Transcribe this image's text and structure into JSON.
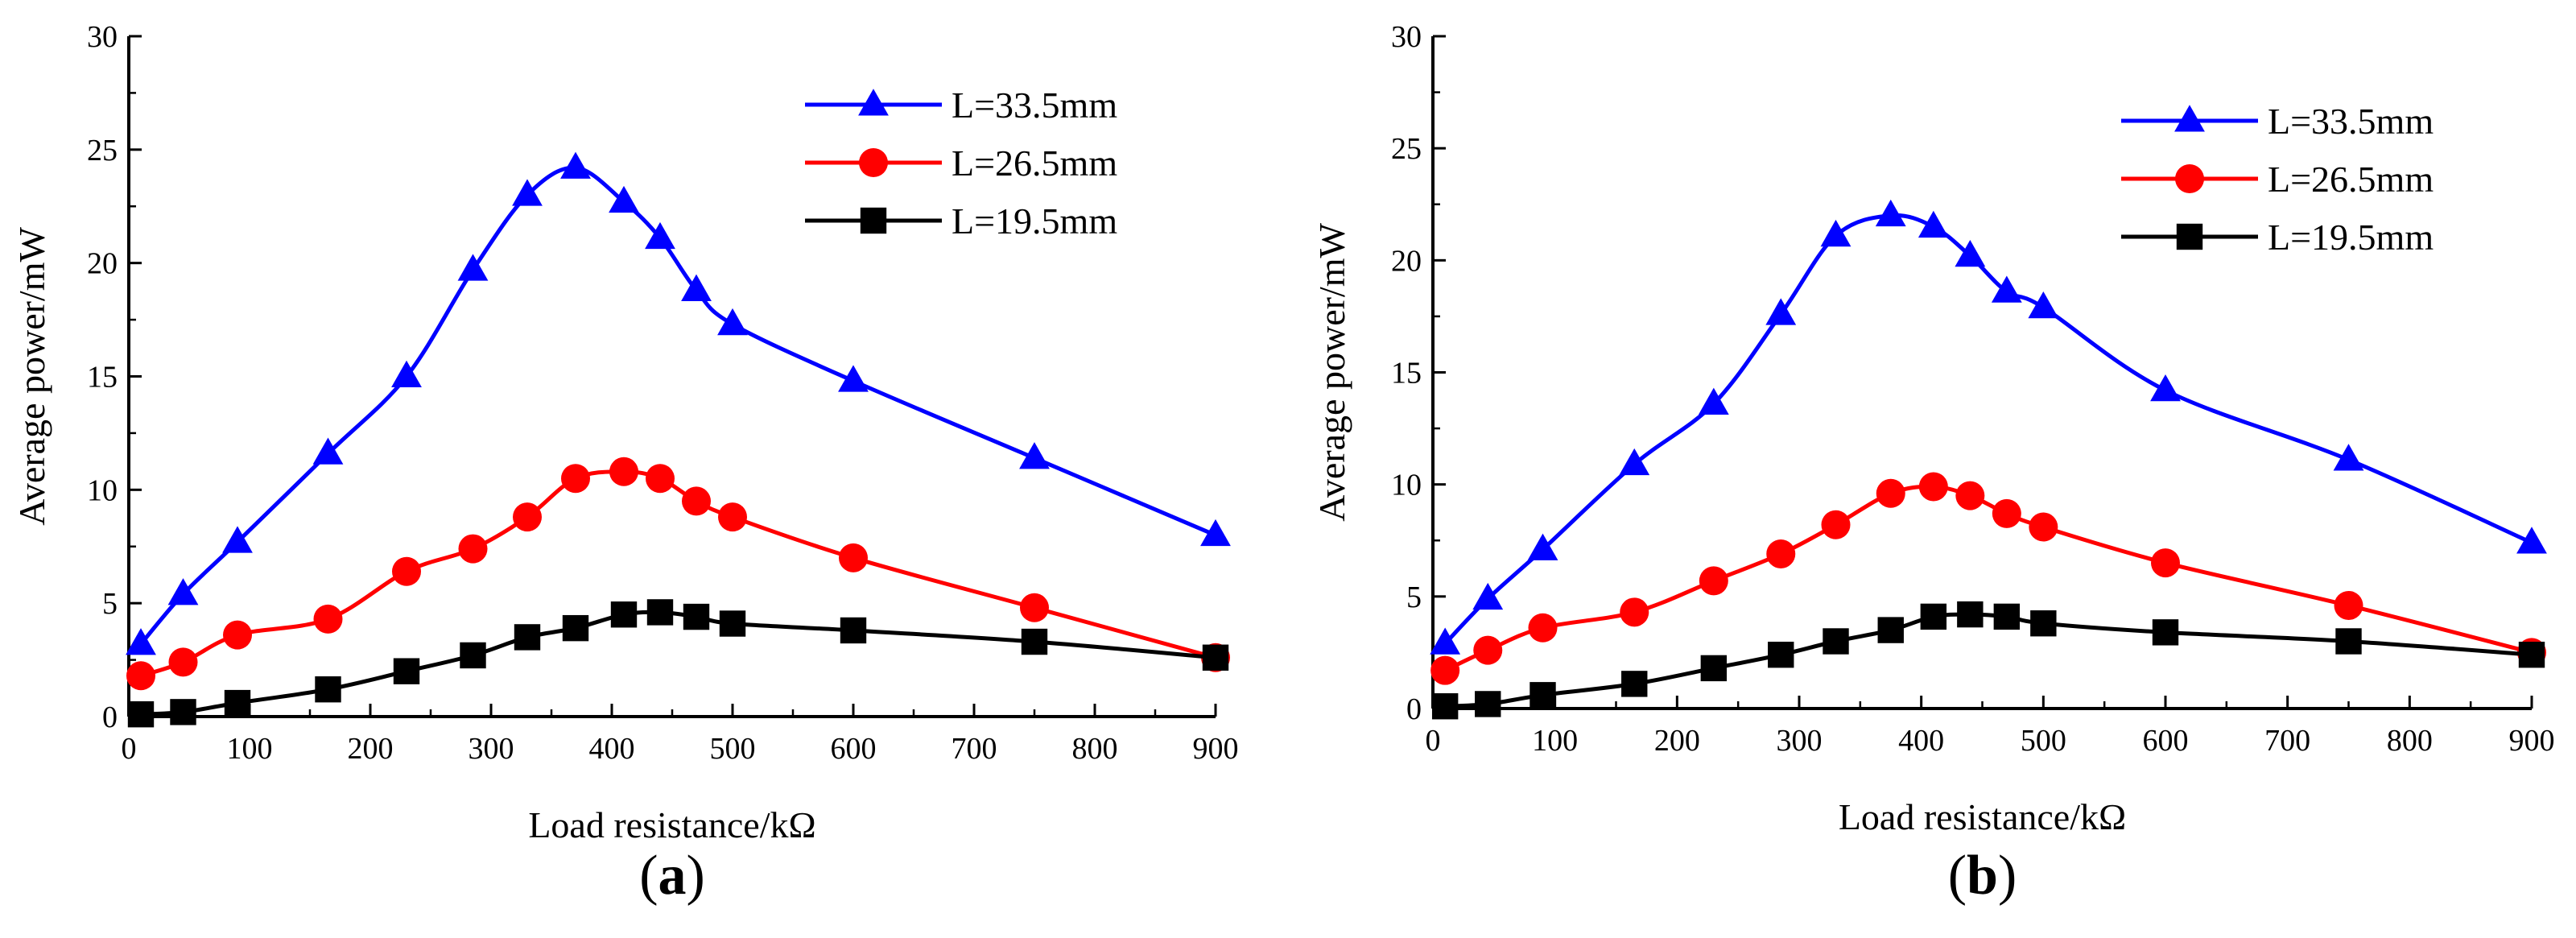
{
  "chart_data": [
    {
      "type": "line",
      "panel_label_open": "(",
      "panel_label_letter": "a",
      "panel_label_close": ")",
      "xlabel": "Load resistance/kΩ",
      "ylabel": "Average power/mW",
      "xlim": [
        0,
        900
      ],
      "ylim": [
        0,
        30
      ],
      "xticks": [
        "0",
        "100",
        "200",
        "300",
        "400",
        "500",
        "600",
        "700",
        "800",
        "900"
      ],
      "yticks": [
        "0",
        "5",
        "10",
        "15",
        "20",
        "25",
        "30"
      ],
      "x": [
        10,
        45,
        90,
        165,
        230,
        285,
        330,
        370,
        410,
        440,
        470,
        500,
        600,
        750,
        900
      ],
      "legend_position": "top-right",
      "series": [
        {
          "name": "L=33.5mm",
          "marker": "triangle",
          "color": "#0000ff",
          "values": [
            3.2,
            5.4,
            7.7,
            11.6,
            15.0,
            19.7,
            23.0,
            24.2,
            22.7,
            21.1,
            18.8,
            17.3,
            14.8,
            11.4,
            8.0
          ]
        },
        {
          "name": "L=26.5mm",
          "marker": "circle",
          "color": "#ff0000",
          "values": [
            1.8,
            2.4,
            3.6,
            4.3,
            6.4,
            7.4,
            8.8,
            10.5,
            10.8,
            10.5,
            9.5,
            8.8,
            7.0,
            4.8,
            2.6
          ]
        },
        {
          "name": "L=19.5mm",
          "marker": "square",
          "color": "#000000",
          "values": [
            0.1,
            0.2,
            0.6,
            1.2,
            2.0,
            2.7,
            3.5,
            3.9,
            4.5,
            4.6,
            4.4,
            4.1,
            3.8,
            3.3,
            2.6
          ]
        }
      ]
    },
    {
      "type": "line",
      "panel_label_open": "(",
      "panel_label_letter": "b",
      "panel_label_close": ")",
      "xlabel": "Load resistance/kΩ",
      "ylabel": "Average power/mW",
      "xlim": [
        0,
        900
      ],
      "ylim": [
        0,
        30
      ],
      "xticks": [
        "0",
        "100",
        "200",
        "300",
        "400",
        "500",
        "600",
        "700",
        "800",
        "900"
      ],
      "yticks": [
        "0",
        "5",
        "10",
        "15",
        "20",
        "25",
        "30"
      ],
      "x": [
        10,
        45,
        90,
        165,
        230,
        285,
        330,
        375,
        410,
        440,
        470,
        500,
        600,
        750,
        900
      ],
      "legend_position": "top-right",
      "series": [
        {
          "name": "L=33.5mm",
          "marker": "triangle",
          "color": "#0000ff",
          "values": [
            2.9,
            4.9,
            7.1,
            10.9,
            13.6,
            17.6,
            21.1,
            22.0,
            21.5,
            20.2,
            18.6,
            17.9,
            14.2,
            11.1,
            7.4
          ]
        },
        {
          "name": "L=26.5mm",
          "marker": "circle",
          "color": "#ff0000",
          "values": [
            1.7,
            2.6,
            3.6,
            4.3,
            5.7,
            6.9,
            8.2,
            9.6,
            9.9,
            9.5,
            8.7,
            8.1,
            6.5,
            4.6,
            2.5
          ]
        },
        {
          "name": "L=19.5mm",
          "marker": "square",
          "color": "#000000",
          "values": [
            0.1,
            0.2,
            0.6,
            1.1,
            1.8,
            2.4,
            3.0,
            3.5,
            4.1,
            4.2,
            4.1,
            3.8,
            3.4,
            3.0,
            2.4
          ]
        }
      ]
    }
  ]
}
